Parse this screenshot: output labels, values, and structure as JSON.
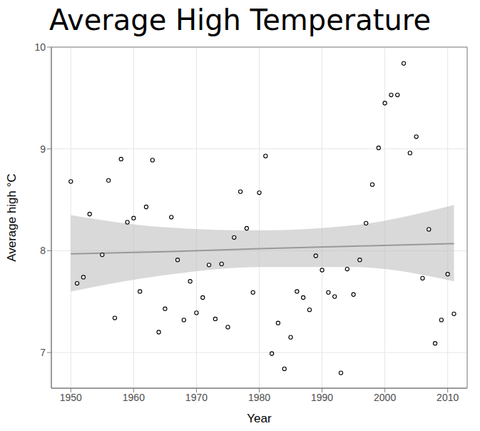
{
  "chart_data": {
    "type": "scatter",
    "title": "Average High Temperature",
    "x_label": "Year",
    "y_label": "Average high °C",
    "x": [
      1950,
      1951,
      1952,
      1953,
      1955,
      1956,
      1957,
      1958,
      1959,
      1960,
      1961,
      1962,
      1963,
      1964,
      1965,
      1966,
      1967,
      1968,
      1969,
      1970,
      1971,
      1972,
      1973,
      1974,
      1975,
      1976,
      1977,
      1978,
      1979,
      1980,
      1981,
      1982,
      1983,
      1984,
      1985,
      1986,
      1987,
      1988,
      1989,
      1990,
      1991,
      1992,
      1993,
      1994,
      1995,
      1996,
      1997,
      1998,
      1999,
      2000,
      2001,
      2002,
      2003,
      2004,
      2005,
      2006,
      2007,
      2008,
      2009,
      2010,
      2011
    ],
    "values": [
      8.68,
      7.68,
      7.74,
      8.36,
      7.96,
      8.69,
      7.34,
      8.9,
      8.28,
      8.32,
      7.6,
      8.43,
      8.89,
      7.2,
      7.43,
      8.33,
      7.91,
      7.32,
      7.7,
      7.39,
      7.54,
      7.86,
      7.33,
      7.87,
      7.25,
      8.13,
      8.58,
      8.22,
      7.59,
      8.57,
      8.93,
      6.99,
      7.29,
      6.84,
      7.15,
      7.6,
      7.54,
      7.42,
      7.95,
      7.81,
      7.59,
      7.55,
      6.8,
      7.82,
      7.57,
      7.91,
      8.27,
      8.65,
      9.01,
      9.45,
      9.53,
      9.53,
      9.84,
      8.96,
      9.12,
      7.73,
      8.21,
      7.09,
      7.32,
      7.77,
      7.38
    ],
    "color": "#000000",
    "marker": "open_circle",
    "trend": {
      "type": "line",
      "x": [
        1950,
        1965,
        1980,
        1995,
        2011
      ],
      "values": [
        7.97,
        7.99,
        8.02,
        8.045,
        8.07
      ],
      "lower": [
        7.6,
        7.76,
        7.84,
        7.84,
        7.7
      ],
      "upper": [
        8.35,
        8.23,
        8.2,
        8.25,
        8.45
      ],
      "color": "#999999"
    },
    "xlim": [
      1946.9,
      2013.1
    ],
    "ylim": [
      6.65,
      10
    ],
    "xticks": [
      1950,
      1960,
      1970,
      1980,
      1990,
      2000,
      2010
    ],
    "yticks": [
      7,
      8,
      9,
      10
    ],
    "grid": true
  }
}
